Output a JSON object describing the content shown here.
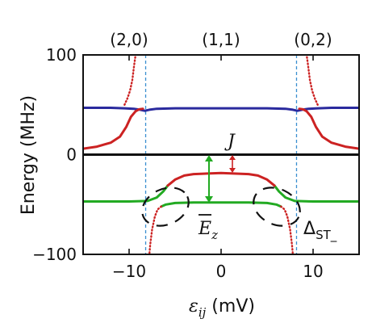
{
  "chart_data": {
    "type": "line",
    "xlabel_symbol": "ε",
    "xlabel_sub": "ij",
    "xlabel_unit": " (mV)",
    "ylabel": "Energy (MHz)",
    "xlim": [
      -15,
      15
    ],
    "ylim": [
      -100,
      100
    ],
    "xticks": [
      -10,
      0,
      10
    ],
    "xtick_labels": [
      "−10",
      "0",
      "10"
    ],
    "yticks": [
      -100,
      0,
      100
    ],
    "ytick_labels": [
      "−100",
      "0",
      "100"
    ],
    "top_labels": [
      {
        "x": -10,
        "text": "(2,0)"
      },
      {
        "x": 0,
        "text": "(1,1)"
      },
      {
        "x": 10,
        "text": "(0,2)"
      }
    ],
    "anticrossing_x": [
      -8.2,
      8.2
    ],
    "series": [
      {
        "color": "#2a2a9e",
        "points": [
          [
            -15,
            47
          ],
          [
            -12,
            47
          ],
          [
            -10.5,
            46.5
          ],
          [
            -9.5,
            46
          ],
          [
            -8.8,
            45
          ],
          [
            -8.3,
            44
          ],
          [
            -7.8,
            45
          ],
          [
            -7,
            46
          ],
          [
            -5,
            46.5
          ],
          [
            0,
            46.5
          ],
          [
            5,
            46.5
          ],
          [
            7,
            46
          ],
          [
            7.8,
            45
          ],
          [
            8.3,
            44
          ],
          [
            8.8,
            45
          ],
          [
            9.5,
            46
          ],
          [
            10.5,
            46.5
          ],
          [
            12,
            47
          ],
          [
            15,
            47
          ]
        ]
      },
      {
        "color": "#cc2222",
        "points": [
          [
            -15,
            6
          ],
          [
            -13.5,
            8
          ],
          [
            -12,
            12
          ],
          [
            -11,
            18
          ],
          [
            -10.3,
            28
          ],
          [
            -9.8,
            38
          ],
          [
            -9.3,
            43.5
          ],
          [
            -8.9,
            45.5
          ],
          [
            -8.5,
            46
          ]
        ]
      },
      {
        "color": "#cc2222",
        "points": [
          [
            8.5,
            46
          ],
          [
            8.9,
            45.5
          ],
          [
            9.3,
            43.5
          ],
          [
            9.8,
            38
          ],
          [
            10.3,
            28
          ],
          [
            11,
            18
          ],
          [
            12,
            12
          ],
          [
            13.5,
            8
          ],
          [
            15,
            6
          ]
        ]
      },
      {
        "color": "#cc2222",
        "dotted": true,
        "points": [
          [
            -10.5,
            50
          ],
          [
            -10.2,
            56
          ],
          [
            -9.9,
            64
          ],
          [
            -9.65,
            75
          ],
          [
            -9.45,
            90
          ],
          [
            -9.3,
            100
          ]
        ]
      },
      {
        "color": "#cc2222",
        "dotted": true,
        "points": [
          [
            10.5,
            50
          ],
          [
            10.2,
            56
          ],
          [
            9.9,
            64
          ],
          [
            9.65,
            75
          ],
          [
            9.45,
            90
          ],
          [
            9.3,
            100
          ]
        ]
      },
      {
        "color": "#111111",
        "points": [
          [
            -15,
            0
          ],
          [
            15,
            0
          ]
        ]
      },
      {
        "color": "#22aa22",
        "points": [
          [
            -15,
            -47
          ],
          [
            -10,
            -47
          ],
          [
            -8,
            -46.5
          ],
          [
            -7,
            -43
          ],
          [
            -6.3,
            -37
          ],
          [
            -5.8,
            -31
          ]
        ]
      },
      {
        "color": "#22aa22",
        "points": [
          [
            5.8,
            -31
          ],
          [
            6.3,
            -37
          ],
          [
            7,
            -43
          ],
          [
            8,
            -46.5
          ],
          [
            10,
            -47
          ],
          [
            15,
            -47
          ]
        ]
      },
      {
        "color": "#cc2222",
        "points": [
          [
            -5.8,
            -31
          ],
          [
            -5,
            -25
          ],
          [
            -4,
            -21
          ],
          [
            -3,
            -19.5
          ],
          [
            0,
            -18.5
          ],
          [
            3,
            -19.5
          ],
          [
            4,
            -21
          ],
          [
            5,
            -25
          ],
          [
            5.8,
            -31
          ]
        ]
      },
      {
        "color": "#22aa22",
        "points": [
          [
            -6.5,
            -52
          ],
          [
            -6,
            -50
          ],
          [
            -5,
            -48.5
          ],
          [
            -3,
            -48
          ],
          [
            0,
            -48
          ],
          [
            3,
            -48
          ],
          [
            5,
            -48.5
          ],
          [
            6,
            -50
          ],
          [
            6.5,
            -52
          ]
        ]
      },
      {
        "color": "#cc2222",
        "dotted": true,
        "points": [
          [
            -6.5,
            -52
          ],
          [
            -6.9,
            -55
          ],
          [
            -7.2,
            -62
          ],
          [
            -7.5,
            -75
          ],
          [
            -7.7,
            -90
          ],
          [
            -7.8,
            -100
          ]
        ]
      },
      {
        "color": "#cc2222",
        "dotted": true,
        "points": [
          [
            6.5,
            -52
          ],
          [
            6.9,
            -55
          ],
          [
            7.2,
            -62
          ],
          [
            7.5,
            -75
          ],
          [
            7.7,
            -90
          ],
          [
            7.8,
            -100
          ]
        ]
      }
    ],
    "annotations": {
      "J": "J",
      "Ez": "E",
      "Ez_sub": "z",
      "delta": "Δ",
      "delta_sub": "ST_"
    },
    "colors": {
      "axis": "#111111",
      "vline": "#3a8fd0",
      "green_arrow": "#22aa22",
      "red_arrow": "#cc2222",
      "ellipse": "#111111"
    }
  }
}
